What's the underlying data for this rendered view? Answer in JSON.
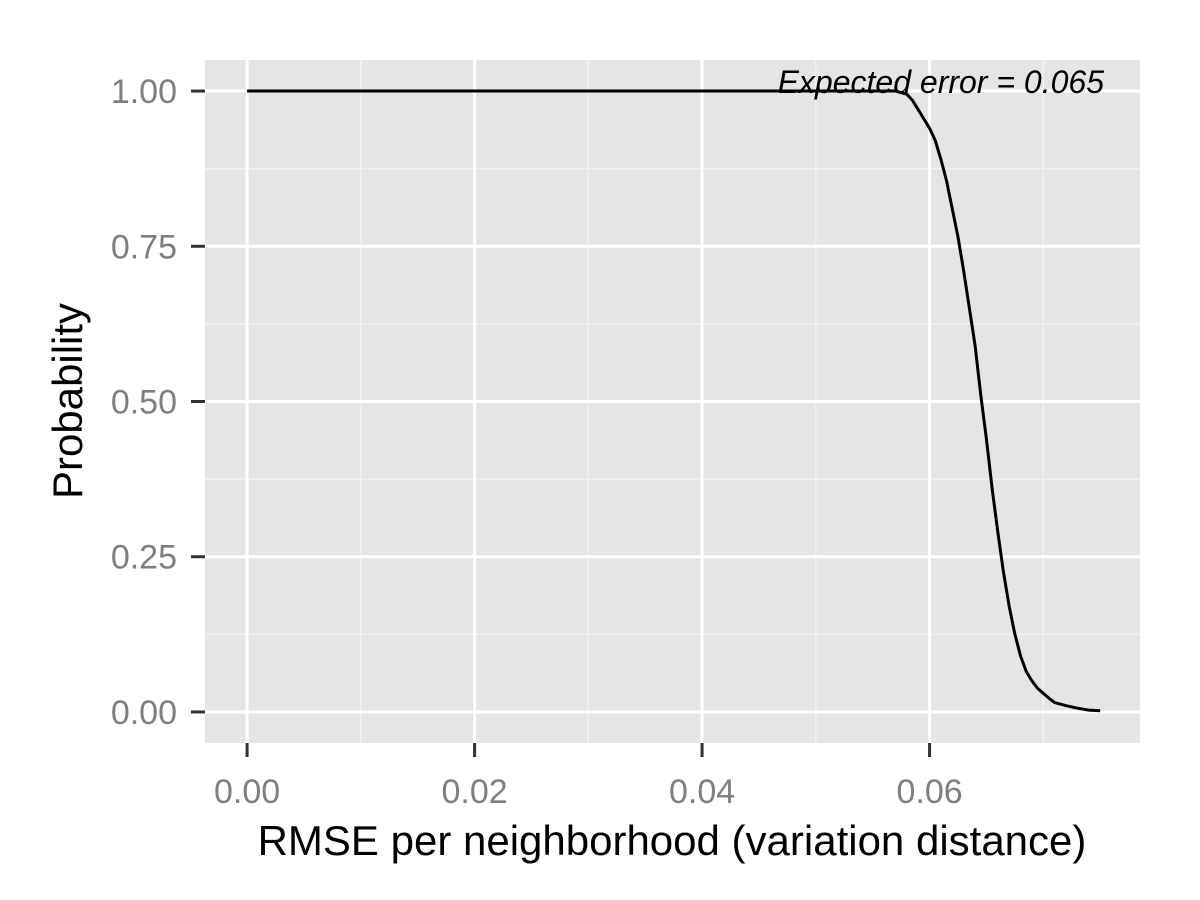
{
  "chart_data": {
    "type": "line",
    "title": "",
    "xlabel": "RMSE per neighborhood (variation distance)",
    "ylabel": "Probability",
    "xlim": [
      -0.0037,
      0.0785
    ],
    "ylim": [
      -0.05,
      1.05
    ],
    "x_ticks": [
      0.0,
      0.02,
      0.04,
      0.06
    ],
    "x_tick_labels": [
      "0.00",
      "0.02",
      "0.04",
      "0.06"
    ],
    "y_ticks": [
      0.0,
      0.25,
      0.5,
      0.75,
      1.0
    ],
    "y_tick_labels": [
      "0.00",
      "0.25",
      "0.50",
      "0.75",
      "1.00"
    ],
    "grid": true,
    "colors": {
      "panel_background": "#e5e5e5",
      "grid_major": "#ffffff",
      "grid_minor": "#f2f2f2",
      "line": "#000000",
      "tick_label": "#7f7f7f"
    },
    "annotation": "Expected error = 0.065",
    "annotation_position": "top-right",
    "series": [
      {
        "x": [
          0.0,
          0.05,
          0.057,
          0.058,
          0.0585,
          0.059,
          0.0595,
          0.06,
          0.0605,
          0.061,
          0.0615,
          0.062,
          0.0625,
          0.063,
          0.0635,
          0.064,
          0.0645,
          0.065,
          0.0655,
          0.066,
          0.0665,
          0.067,
          0.0675,
          0.068,
          0.0685,
          0.069,
          0.0695,
          0.07,
          0.0705,
          0.071,
          0.072,
          0.073,
          0.074,
          0.075
        ],
        "y": [
          1.0,
          1.0,
          1.0,
          0.995,
          0.985,
          0.97,
          0.955,
          0.94,
          0.92,
          0.89,
          0.855,
          0.81,
          0.765,
          0.71,
          0.65,
          0.59,
          0.51,
          0.44,
          0.36,
          0.29,
          0.225,
          0.17,
          0.125,
          0.09,
          0.065,
          0.05,
          0.038,
          0.03,
          0.022,
          0.015,
          0.01,
          0.006,
          0.003,
          0.002
        ]
      }
    ]
  }
}
